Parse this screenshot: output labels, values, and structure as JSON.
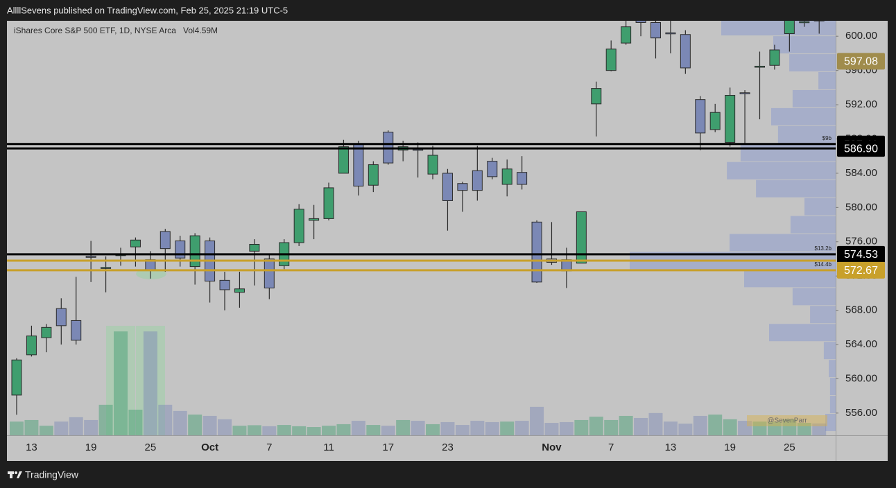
{
  "header": {
    "published": "AllllSevens published on TradingView.com, Feb 25, 2025 21:19 UTC-5",
    "brand": "TradingView"
  },
  "chart_data": {
    "type": "candlestick",
    "legend": "iShares Core S&P 500 ETF, 1D, NYSE Arca",
    "volume_legend": "Vol4.59M",
    "watermark": "@SevenParr",
    "up_color": "#3f9e6e",
    "down_color": "#7b88b5",
    "grid": false,
    "categories": [
      null,
      "13",
      null,
      null,
      null,
      "19",
      null,
      null,
      null,
      "25",
      null,
      null,
      null,
      "Oct",
      null,
      null,
      null,
      "7",
      null,
      null,
      null,
      "11",
      null,
      null,
      null,
      "17",
      null,
      null,
      null,
      "23",
      null,
      null,
      null,
      null,
      null,
      null,
      "Nov",
      null,
      null,
      null,
      "7",
      null,
      null,
      null,
      "13",
      null,
      null,
      null,
      "19",
      null,
      null,
      null,
      "25",
      null,
      null
    ],
    "open": [
      558.1,
      562.8,
      564.8,
      568.2,
      566.8,
      574.3,
      572.9,
      574.4,
      575.4,
      573.9,
      577.2,
      576.1,
      573.1,
      576.1,
      571.5,
      570.1,
      574.9,
      574.0,
      573.2,
      575.9,
      578.5,
      578.7,
      584.0,
      587.4,
      582.6,
      588.8,
      586.7,
      586.8,
      583.9,
      584.0,
      582.8,
      584.3,
      585.4,
      582.7,
      584.1,
      578.3,
      574.0,
      573.9,
      573.5,
      592.1,
      596.0,
      599.2,
      602.3,
      601.6,
      600.4,
      600.2,
      592.6,
      589.1,
      587.6,
      593.4,
      596.4,
      596.6,
      600.3,
      601.6,
      601.9
    ],
    "high": [
      562.4,
      566.2,
      566.4,
      569.4,
      571.9,
      576.1,
      574.3,
      575.3,
      576.5,
      574.9,
      577.5,
      576.7,
      577.0,
      576.5,
      572.5,
      572.5,
      576.3,
      574.6,
      576.3,
      580.4,
      580.3,
      582.9,
      587.9,
      587.8,
      585.4,
      589.0,
      587.8,
      587.6,
      587.2,
      584.5,
      583.0,
      587.2,
      585.8,
      585.6,
      586.0,
      578.5,
      578.3,
      575.3,
      579.5,
      594.7,
      599.5,
      601.9,
      602.8,
      602.0,
      601.8,
      600.7,
      593.0,
      592.1,
      594.0,
      593.7,
      598.2,
      599.0,
      602.2,
      601.9,
      602.2
    ],
    "low": [
      555.8,
      562.6,
      563.1,
      564.0,
      564.0,
      571.3,
      570.1,
      573.2,
      573.1,
      571.7,
      572.5,
      573.1,
      571.0,
      568.9,
      568.0,
      568.3,
      570.9,
      569.3,
      572.8,
      575.5,
      576.3,
      578.5,
      584.0,
      581.4,
      581.8,
      585.0,
      585.4,
      583.5,
      583.3,
      577.3,
      579.5,
      580.8,
      583.3,
      581.3,
      582.1,
      571.2,
      573.3,
      570.6,
      573.5,
      588.3,
      595.9,
      599.0,
      600.0,
      597.4,
      598.0,
      595.6,
      586.7,
      588.8,
      587.1,
      587.5,
      590.3,
      596.1,
      598.2,
      601.1,
      600.3
    ],
    "close": [
      562.2,
      565.0,
      566.0,
      566.2,
      564.5,
      574.2,
      573.0,
      574.5,
      576.2,
      572.7,
      575.2,
      574.1,
      576.7,
      571.4,
      570.4,
      570.5,
      575.7,
      570.6,
      575.9,
      579.8,
      578.7,
      582.3,
      587.1,
      582.5,
      585.0,
      585.2,
      587.1,
      586.7,
      586.1,
      580.8,
      582.0,
      582.0,
      583.6,
      584.5,
      582.7,
      571.3,
      573.6,
      572.6,
      579.5,
      593.9,
      598.5,
      601.1,
      601.6,
      599.8,
      600.3,
      596.3,
      588.7,
      591.1,
      593.1,
      593.3,
      596.5,
      598.4,
      601.9,
      601.7,
      601.8
    ],
    "volume": [
      5.3,
      5.9,
      3.7,
      5.3,
      7.0,
      5.9,
      11.8,
      40.1,
      9.9,
      40.1,
      11.8,
      9.4,
      8.0,
      7.5,
      6.2,
      3.7,
      3.9,
      3.5,
      4.0,
      3.5,
      3.2,
      3.7,
      4.3,
      5.6,
      4.0,
      3.7,
      5.9,
      5.6,
      4.3,
      5.1,
      4.0,
      5.6,
      5.1,
      5.3,
      5.6,
      11.0,
      4.8,
      5.1,
      5.9,
      7.2,
      5.9,
      7.5,
      6.7,
      8.6,
      5.3,
      4.5,
      7.5,
      8.0,
      6.2,
      5.6,
      5.3,
      5.3,
      6.2,
      4.8,
      4.59
    ],
    "volume_ylim": [
      0,
      160
    ],
    "ylim": [
      553.4,
      601.8
    ],
    "yticks": [
      {
        "value": 556,
        "label": "556.00"
      },
      {
        "value": 560,
        "label": "560.00"
      },
      {
        "value": 564,
        "label": "564.00"
      },
      {
        "value": 568,
        "label": "568.00"
      },
      {
        "value": 572,
        "label": "572.00"
      },
      {
        "value": 576,
        "label": "576.00"
      },
      {
        "value": 580,
        "label": "580.00"
      },
      {
        "value": 584,
        "label": "584.00"
      },
      {
        "value": 588,
        "label": "588.00"
      },
      {
        "value": 592,
        "label": "592.00"
      },
      {
        "value": 596,
        "label": "596.00"
      },
      {
        "value": 600,
        "label": "600.00"
      }
    ],
    "profile": {
      "color": "#a3acca",
      "xlim": [
        0,
        100
      ],
      "bins": [
        553.85,
        555.95,
        558.05,
        560.15,
        562.25,
        564.35,
        566.45,
        568.55,
        570.65,
        572.75,
        574.85,
        576.95,
        579.05,
        581.15,
        583.25,
        585.35,
        587.45,
        589.55,
        591.65,
        593.75,
        595.85,
        597.95,
        600.05,
        602.15
      ],
      "values": [
        5,
        2.7,
        2.7,
        3.3,
        5.7,
        32,
        12.3,
        20.7,
        44,
        99,
        51,
        21.7,
        15,
        38.3,
        52.3,
        45.7,
        27.7,
        31,
        20.7,
        8.3,
        22.3,
        30,
        55
      ]
    },
    "levels": [
      {
        "value": 597.08,
        "color": "#a08c4c",
        "line": false
      },
      {
        "value": 587.41,
        "color": "#000000",
        "annotation": "$9b"
      },
      {
        "value": 586.9,
        "label": "586.90",
        "color": "#000000"
      },
      {
        "value": 574.53,
        "color": "#000000",
        "annotation": "$13.2b"
      },
      {
        "value": 573.8,
        "color": "#c8a02a",
        "tag": false
      },
      {
        "value": 572.67,
        "color": "#c8a02a",
        "annotation": "$14.4b"
      }
    ]
  }
}
